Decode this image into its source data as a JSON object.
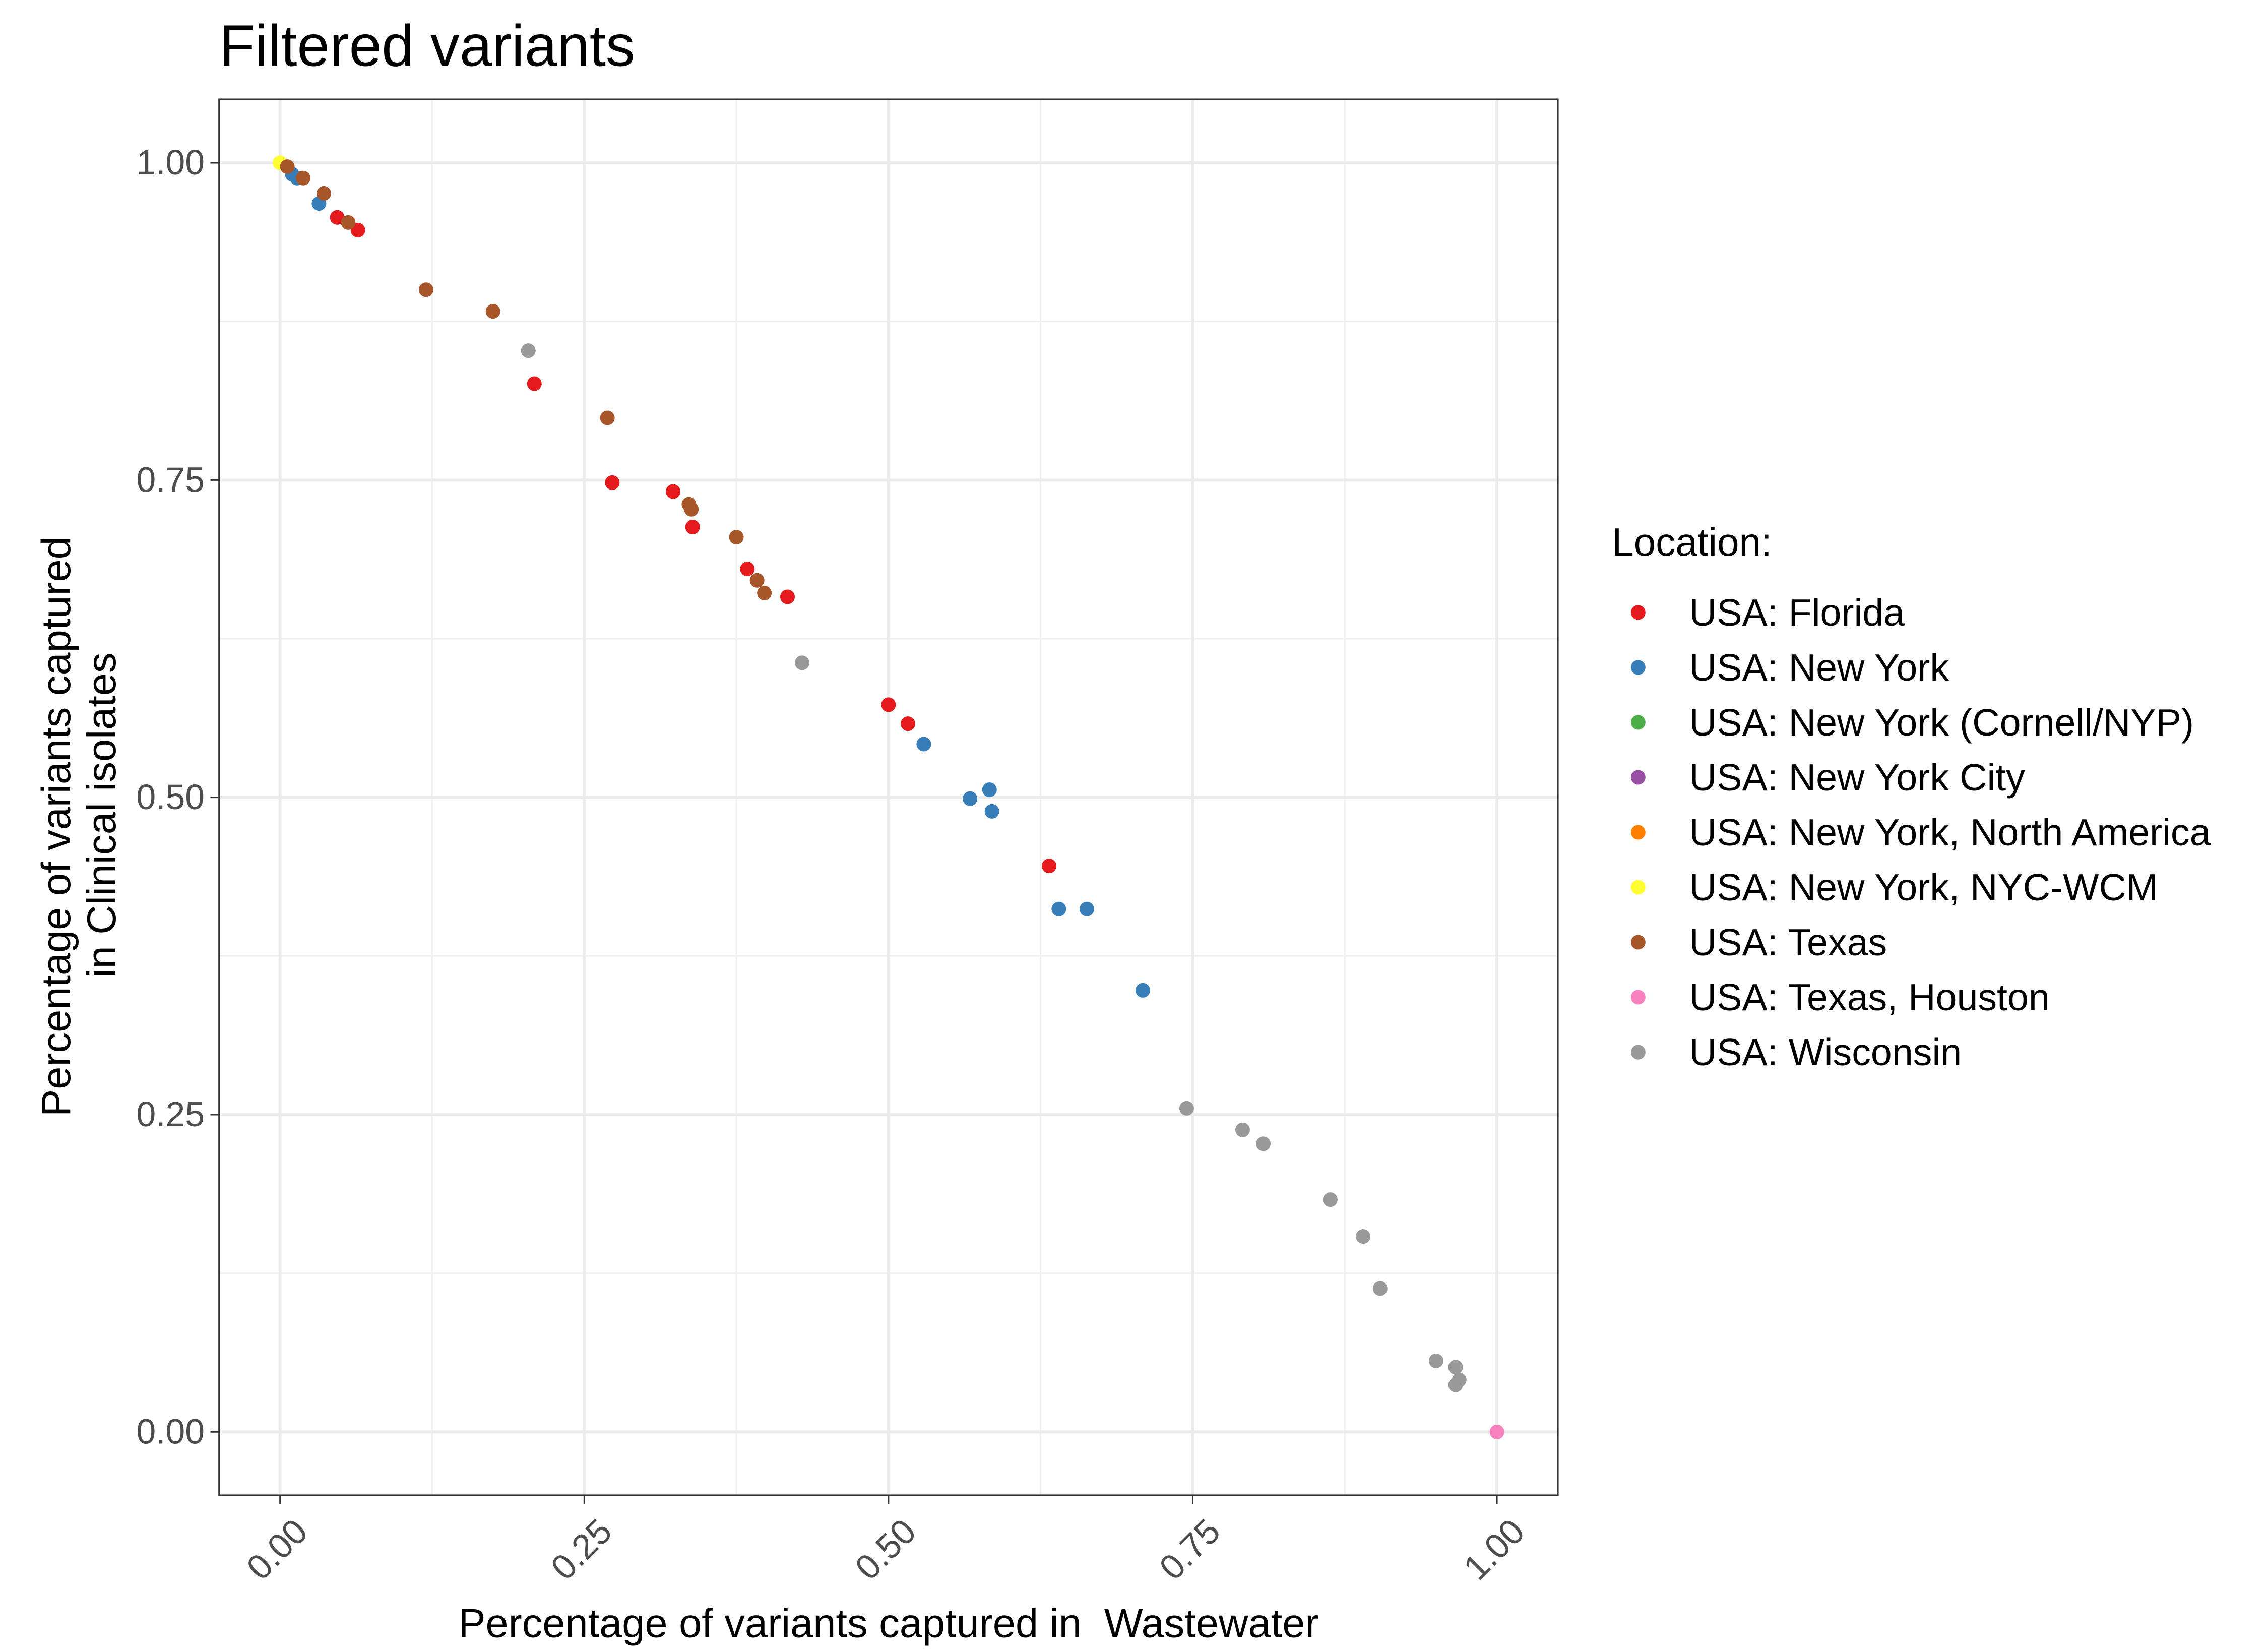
{
  "chart_data": {
    "type": "scatter",
    "title": "Filtered variants",
    "xlabel": "Percentage of variants captured in  Wastewater",
    "ylabel": [
      "Percentage of variants captured",
      "in Clinical isolates"
    ],
    "legend_title": "Location:",
    "legend": "right",
    "grid": true,
    "xlim": [
      -0.05,
      1.05
    ],
    "ylim": [
      -0.05,
      1.05
    ],
    "xticks": [
      {
        "value": 0,
        "label": "0.00"
      },
      {
        "value": 0.25,
        "label": "0.25"
      },
      {
        "value": 0.5,
        "label": "0.50"
      },
      {
        "value": 0.75,
        "label": "0.75"
      },
      {
        "value": 1,
        "label": "1.00"
      }
    ],
    "yticks": [
      {
        "value": 0,
        "label": "0.00"
      },
      {
        "value": 0.25,
        "label": "0.25"
      },
      {
        "value": 0.5,
        "label": "0.50"
      },
      {
        "value": 0.75,
        "label": "0.75"
      },
      {
        "value": 1,
        "label": "1.00"
      }
    ],
    "minor_xticks": [
      0.125,
      0.375,
      0.625,
      0.875
    ],
    "minor_yticks": [
      0.125,
      0.375,
      0.625,
      0.875
    ],
    "series": [
      {
        "name": "USA: Florida",
        "color": "#e41a1c",
        "x": [
          0.047,
          0.064,
          0.209,
          0.273,
          0.323,
          0.339,
          0.384,
          0.417,
          0.5,
          0.516,
          0.632
        ],
        "values": [
          0.957,
          0.947,
          0.826,
          0.748,
          0.741,
          0.713,
          0.68,
          0.658,
          0.573,
          0.558,
          0.446
        ]
      },
      {
        "name": "USA: New York",
        "color": "#377eb8",
        "x": [
          0.01,
          0.014,
          0.032,
          0.529,
          0.567,
          0.583,
          0.585,
          0.64,
          0.663,
          0.709
        ],
        "values": [
          0.991,
          0.988,
          0.968,
          0.542,
          0.499,
          0.506,
          0.489,
          0.412,
          0.412,
          0.348
        ]
      },
      {
        "name": "USA: New York (Cornell/NYP)",
        "color": "#4daf4a",
        "x": [],
        "values": []
      },
      {
        "name": "USA: New York City",
        "color": "#984ea3",
        "x": [],
        "values": []
      },
      {
        "name": "USA: New York, North America",
        "color": "#ff7f00",
        "x": [],
        "values": []
      },
      {
        "name": "USA: New York, NYC-WCM",
        "color": "#ffff33",
        "x": [
          0
        ],
        "values": [
          1
        ]
      },
      {
        "name": "USA: Texas",
        "color": "#a65628",
        "x": [
          0.006,
          0.019,
          0.036,
          0.056,
          0.12,
          0.175,
          0.269,
          0.336,
          0.338,
          0.375,
          0.392,
          0.398
        ],
        "values": [
          0.997,
          0.988,
          0.976,
          0.953,
          0.9,
          0.883,
          0.799,
          0.731,
          0.727,
          0.705,
          0.671,
          0.661
        ]
      },
      {
        "name": "USA: Texas, Houston",
        "color": "#f781bf",
        "x": [
          1
        ],
        "values": [
          0
        ]
      },
      {
        "name": "USA: Wisconsin",
        "color": "#999999",
        "x": [
          0.204,
          0.429,
          0.745,
          0.791,
          0.808,
          0.863,
          0.89,
          0.904,
          0.95,
          0.966,
          0.969,
          0.966
        ],
        "values": [
          0.852,
          0.606,
          0.255,
          0.238,
          0.227,
          0.183,
          0.154,
          0.113,
          0.056,
          0.051,
          0.041,
          0.037
        ]
      }
    ]
  }
}
